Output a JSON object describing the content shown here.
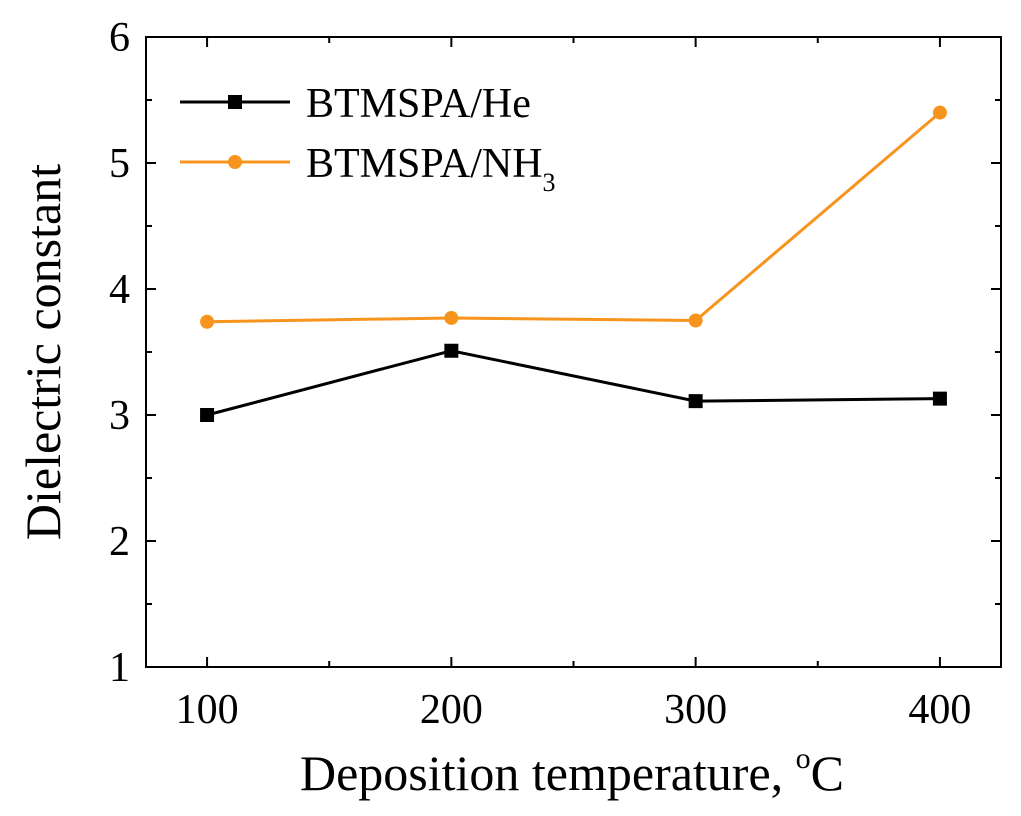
{
  "chart_data": {
    "type": "line",
    "title": "",
    "xlabel": "Deposition temperature, ",
    "xlabel_unit_super": "o",
    "xlabel_unit": "C",
    "ylabel": "Dielectric constant",
    "x": [
      100,
      200,
      300,
      400
    ],
    "xticks": [
      "100",
      "200",
      "300",
      "400"
    ],
    "xlim": [
      75,
      425
    ],
    "ylim": [
      1,
      6
    ],
    "yticks": [
      "1",
      "2",
      "3",
      "4",
      "5",
      "6"
    ],
    "grid": false,
    "legend_position": "top-left",
    "series": [
      {
        "name": "BTMSPA/He",
        "legend_main": "BTMSPA/He",
        "legend_sub": "",
        "color": "#000000",
        "marker": "square",
        "values": [
          3.0,
          3.51,
          3.11,
          3.13
        ]
      },
      {
        "name": "BTMSPA/NH3",
        "legend_main": "BTMSPA/NH",
        "legend_sub": "3",
        "color": "#f7941d",
        "marker": "circle",
        "values": [
          3.74,
          3.77,
          3.75,
          5.4
        ]
      }
    ]
  }
}
